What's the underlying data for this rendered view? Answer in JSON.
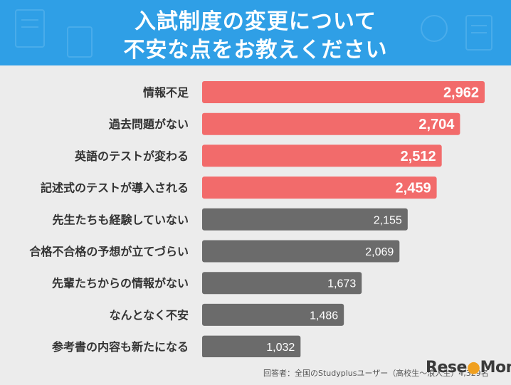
{
  "header": {
    "title_line1": "入試制度の変更について",
    "title_line2": "不安な点をお教えください"
  },
  "chart_data": {
    "type": "bar",
    "orientation": "horizontal",
    "categories": [
      "情報不足",
      "過去問題がない",
      "英語のテストが変わる",
      "記述式のテストが導入される",
      "先生たちも経験していない",
      "合格不合格の予想が立てづらい",
      "先輩たちからの情報がない",
      "なんとなく不安",
      "参考書の内容も新たになる"
    ],
    "values": [
      2962,
      2704,
      2512,
      2459,
      2155,
      2069,
      1673,
      1486,
      1032
    ],
    "value_labels": [
      "2,962",
      "2,704",
      "2,512",
      "2,459",
      "2,155",
      "2,069",
      "1,673",
      "1,486",
      "1,032"
    ],
    "highlight_count": 4,
    "colors": {
      "highlight": "#f26b6b",
      "normal": "#6b6b6b"
    },
    "xlim": [
      0,
      2962
    ],
    "grid": false,
    "legend": false
  },
  "footer": {
    "source": "回答者：全国のStudyplusユーザー（高校生～浪人生）4,329名",
    "logo": "ReseMom"
  }
}
